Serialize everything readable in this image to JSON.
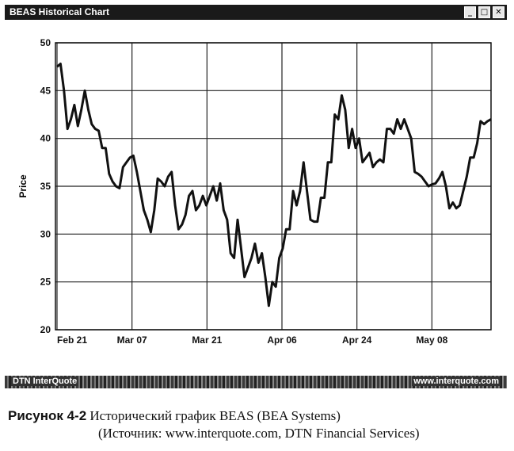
{
  "window": {
    "title": "BEAS Historical Chart",
    "buttons": [
      "_",
      "□",
      "✕"
    ]
  },
  "chart_data": {
    "type": "line",
    "title": "",
    "ylabel": "Price",
    "xlabel": "",
    "ylim": [
      20,
      50
    ],
    "yticks": [
      20,
      25,
      30,
      35,
      40,
      45,
      50
    ],
    "xticks": [
      "Feb 21",
      "Mar 07",
      "Mar 21",
      "Apr 06",
      "Apr 24",
      "May 08"
    ],
    "grid": true,
    "series": [
      {
        "values": [
          47.5,
          47.8,
          45.0,
          41.0,
          42.0,
          43.5,
          41.3,
          43.0,
          45.0,
          43.0,
          41.5,
          41.0,
          40.8,
          39.0,
          39.0,
          36.3,
          35.5,
          35.0,
          34.8,
          37.0,
          37.5,
          38.0,
          38.2,
          36.5,
          34.5,
          32.5,
          31.5,
          30.2,
          32.5,
          35.8,
          35.5,
          35.0,
          36.0,
          36.5,
          33.0,
          30.5,
          31.0,
          32.0,
          34.0,
          34.5,
          32.5,
          33.0,
          34.0,
          33.0,
          34.0,
          35.0,
          33.5,
          35.3,
          32.5,
          31.5,
          28.0,
          27.5,
          31.5,
          28.5,
          25.5,
          26.5,
          27.5,
          29.0,
          27.0,
          28.0,
          25.5,
          22.5,
          25.0,
          24.5,
          27.5,
          28.5,
          30.5,
          30.5,
          34.5,
          33.0,
          34.5,
          37.5,
          34.5,
          31.5,
          31.3,
          31.3,
          33.8,
          33.8,
          37.5,
          37.5,
          42.5,
          42.0,
          44.5,
          43.0,
          39.0,
          41.0,
          39.0,
          40.0,
          37.5,
          38.0,
          38.5,
          37.0,
          37.5,
          37.8,
          37.5,
          41.0,
          41.0,
          40.5,
          42.0,
          41.0,
          42.0,
          41.0,
          40.0,
          36.5,
          36.3,
          36.0,
          35.5,
          35.0,
          35.2,
          35.3,
          35.8,
          36.5,
          35.0,
          32.7,
          33.3,
          32.7,
          33.0,
          34.5,
          36.0,
          38.0,
          38.0,
          39.5,
          41.8,
          41.5,
          41.8,
          42.0
        ]
      }
    ]
  },
  "statusbar": {
    "left": "DTN InterQuote",
    "right": "www.interquote.com"
  },
  "caption": {
    "lead": "Рисунок 4-2",
    "text": "Исторический график BEAS (BEA Systems)",
    "source": "(Источник: www.interquote.com, DTN Financial Services)"
  }
}
